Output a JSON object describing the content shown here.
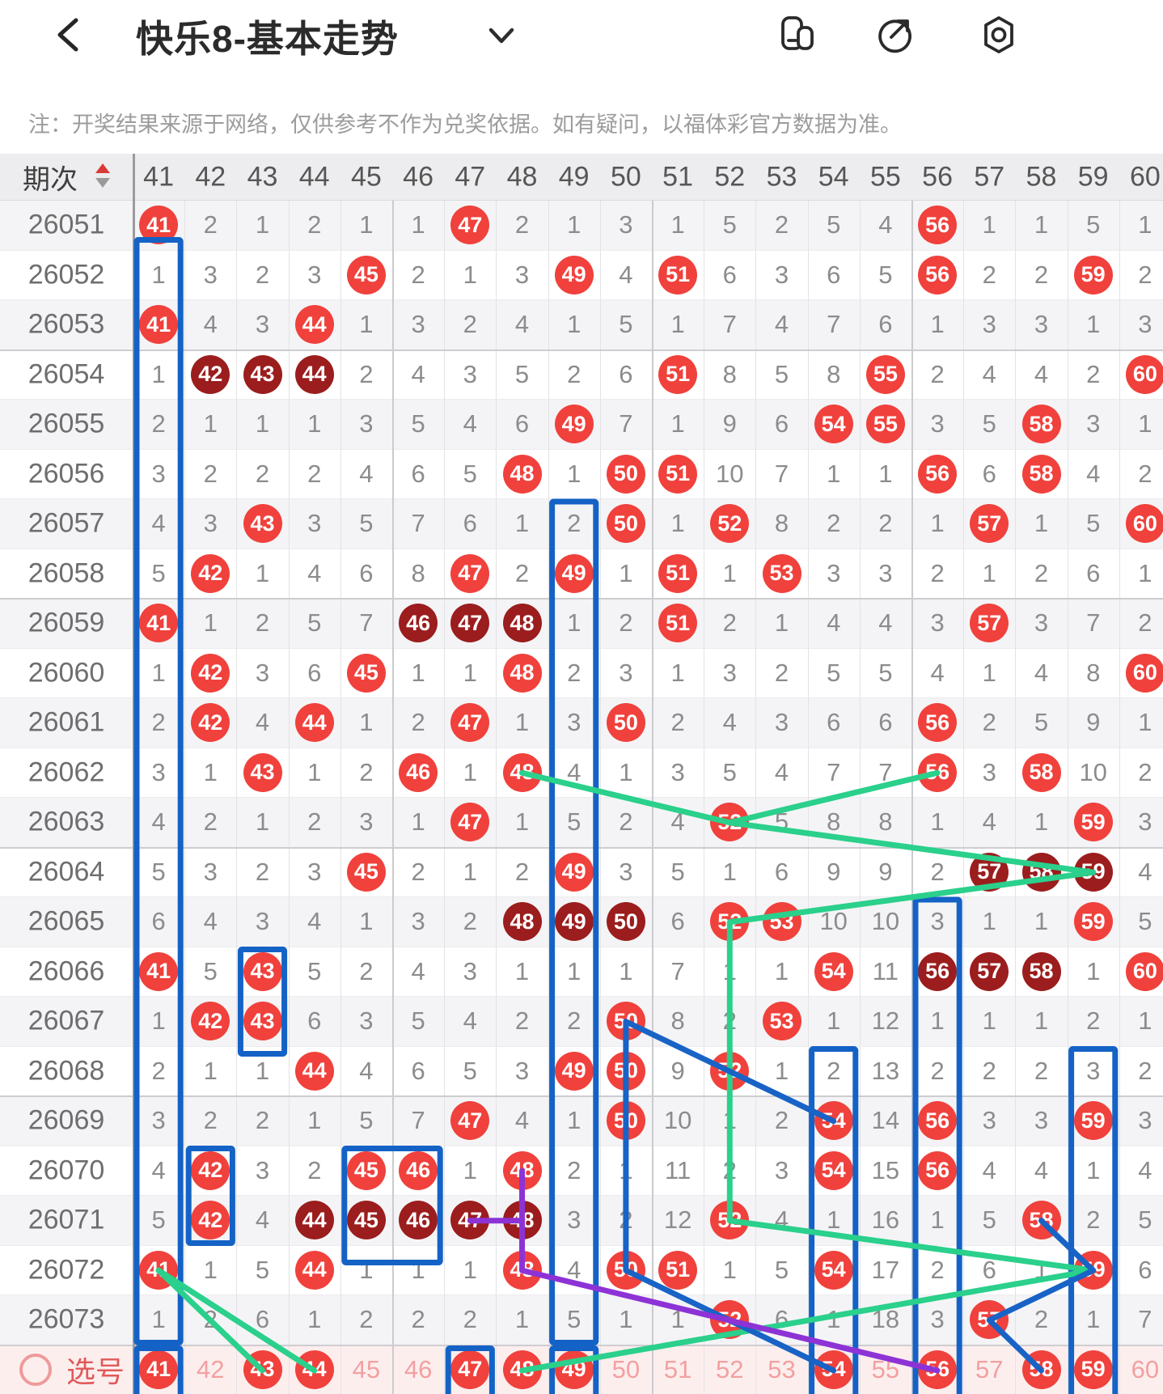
{
  "header": {
    "title": "快乐8-基本走势",
    "icons": [
      "back-icon",
      "chevron-down-icon",
      "multi-window-icon",
      "share-icon",
      "hexagon-dot-icon"
    ]
  },
  "note": "注：开奖结果来源于网络，仅供参考不作为兑奖依据。如有疑问，以福体彩官方数据为准。",
  "table": {
    "period_label": "期次",
    "columns": [
      "41",
      "42",
      "43",
      "44",
      "45",
      "46",
      "47",
      "48",
      "49",
      "50",
      "51",
      "52",
      "53",
      "54",
      "55",
      "56",
      "57",
      "58",
      "59",
      "60"
    ],
    "legend": {
      "B": "drawn-ball",
      "D": "repeat-drawn-ball",
      "plain": "miss-count"
    },
    "rows": [
      {
        "period": "26051",
        "cells": [
          "B41",
          "2",
          "1",
          "2",
          "1",
          "1",
          "B47",
          "2",
          "1",
          "3",
          "1",
          "5",
          "2",
          "5",
          "4",
          "B56",
          "1",
          "1",
          "5",
          "1"
        ]
      },
      {
        "period": "26052",
        "cells": [
          "1",
          "3",
          "2",
          "3",
          "B45",
          "2",
          "1",
          "3",
          "B49",
          "4",
          "B51",
          "6",
          "3",
          "6",
          "5",
          "B56",
          "2",
          "2",
          "B59",
          "2"
        ]
      },
      {
        "period": "26053",
        "cells": [
          "B41",
          "4",
          "3",
          "B44",
          "1",
          "3",
          "2",
          "4",
          "1",
          "5",
          "1",
          "7",
          "4",
          "7",
          "6",
          "1",
          "3",
          "3",
          "1",
          "3"
        ]
      },
      {
        "period": "26054",
        "cells": [
          "1",
          "D42",
          "D43",
          "D44",
          "2",
          "4",
          "3",
          "5",
          "2",
          "6",
          "B51",
          "8",
          "5",
          "8",
          "B55",
          "2",
          "4",
          "4",
          "2",
          "B60"
        ]
      },
      {
        "period": "26055",
        "cells": [
          "2",
          "1",
          "1",
          "1",
          "3",
          "5",
          "4",
          "6",
          "B49",
          "7",
          "1",
          "9",
          "6",
          "B54",
          "B55",
          "3",
          "5",
          "B58",
          "3",
          "1"
        ]
      },
      {
        "period": "26056",
        "cells": [
          "3",
          "2",
          "2",
          "2",
          "4",
          "6",
          "5",
          "B48",
          "1",
          "B50",
          "B51",
          "10",
          "7",
          "1",
          "1",
          "B56",
          "6",
          "B58",
          "4",
          "2"
        ]
      },
      {
        "period": "26057",
        "cells": [
          "4",
          "3",
          "B43",
          "3",
          "5",
          "7",
          "6",
          "1",
          "2",
          "B50",
          "1",
          "B52",
          "8",
          "2",
          "2",
          "1",
          "B57",
          "1",
          "5",
          "B60"
        ]
      },
      {
        "period": "26058",
        "cells": [
          "5",
          "B42",
          "1",
          "4",
          "6",
          "8",
          "B47",
          "2",
          "B49",
          "1",
          "B51",
          "1",
          "B53",
          "3",
          "3",
          "2",
          "1",
          "2",
          "6",
          "1"
        ]
      },
      {
        "period": "26059",
        "cells": [
          "B41",
          "1",
          "2",
          "5",
          "7",
          "D46",
          "D47",
          "D48",
          "1",
          "2",
          "B51",
          "2",
          "1",
          "4",
          "4",
          "3",
          "B57",
          "3",
          "7",
          "2"
        ]
      },
      {
        "period": "26060",
        "cells": [
          "1",
          "B42",
          "3",
          "6",
          "B45",
          "1",
          "1",
          "B48",
          "2",
          "3",
          "1",
          "3",
          "2",
          "5",
          "5",
          "4",
          "1",
          "4",
          "8",
          "B60"
        ]
      },
      {
        "period": "26061",
        "cells": [
          "2",
          "B42",
          "4",
          "B44",
          "1",
          "2",
          "B47",
          "1",
          "3",
          "B50",
          "2",
          "4",
          "3",
          "6",
          "6",
          "B56",
          "2",
          "5",
          "9",
          "1"
        ]
      },
      {
        "period": "26062",
        "cells": [
          "3",
          "1",
          "B43",
          "1",
          "2",
          "B46",
          "1",
          "B48",
          "4",
          "1",
          "3",
          "5",
          "4",
          "7",
          "7",
          "B56",
          "3",
          "B58",
          "10",
          "2"
        ]
      },
      {
        "period": "26063",
        "cells": [
          "4",
          "2",
          "1",
          "2",
          "3",
          "1",
          "B47",
          "1",
          "5",
          "2",
          "4",
          "B52",
          "5",
          "8",
          "8",
          "1",
          "4",
          "1",
          "B59",
          "3"
        ]
      },
      {
        "period": "26064",
        "cells": [
          "5",
          "3",
          "2",
          "3",
          "B45",
          "2",
          "1",
          "2",
          "B49",
          "3",
          "5",
          "1",
          "6",
          "9",
          "9",
          "2",
          "D57",
          "D58",
          "D59",
          "4"
        ]
      },
      {
        "period": "26065",
        "cells": [
          "6",
          "4",
          "3",
          "4",
          "1",
          "3",
          "2",
          "D48",
          "D49",
          "D50",
          "6",
          "B52",
          "B53",
          "10",
          "10",
          "3",
          "1",
          "1",
          "B59",
          "5"
        ]
      },
      {
        "period": "26066",
        "cells": [
          "B41",
          "5",
          "B43",
          "5",
          "2",
          "4",
          "3",
          "1",
          "1",
          "1",
          "7",
          "1",
          "1",
          "B54",
          "11",
          "D56",
          "D57",
          "D58",
          "1",
          "B60"
        ]
      },
      {
        "period": "26067",
        "cells": [
          "1",
          "B42",
          "B43",
          "6",
          "3",
          "5",
          "4",
          "2",
          "2",
          "B50",
          "8",
          "2",
          "B53",
          "1",
          "12",
          "1",
          "1",
          "1",
          "2",
          "1"
        ]
      },
      {
        "period": "26068",
        "cells": [
          "2",
          "1",
          "1",
          "B44",
          "4",
          "6",
          "5",
          "3",
          "B49",
          "B50",
          "9",
          "B52",
          "1",
          "2",
          "13",
          "2",
          "2",
          "2",
          "3",
          "2"
        ]
      },
      {
        "period": "26069",
        "cells": [
          "3",
          "2",
          "2",
          "1",
          "5",
          "7",
          "B47",
          "4",
          "1",
          "B50",
          "10",
          "1",
          "2",
          "B54",
          "14",
          "B56",
          "3",
          "3",
          "B59",
          "3"
        ]
      },
      {
        "period": "26070",
        "cells": [
          "4",
          "B42",
          "3",
          "2",
          "B45",
          "B46",
          "1",
          "B48",
          "2",
          "1",
          "11",
          "2",
          "3",
          "B54",
          "15",
          "B56",
          "4",
          "4",
          "1",
          "4"
        ]
      },
      {
        "period": "26071",
        "cells": [
          "5",
          "B42",
          "4",
          "D44",
          "D45",
          "D46",
          "D47",
          "D48",
          "3",
          "2",
          "12",
          "B52",
          "4",
          "1",
          "16",
          "1",
          "5",
          "B58",
          "2",
          "5"
        ]
      },
      {
        "period": "26072",
        "cells": [
          "B41",
          "1",
          "5",
          "B44",
          "1",
          "1",
          "1",
          "B48",
          "4",
          "B50",
          "B51",
          "1",
          "5",
          "B54",
          "17",
          "2",
          "6",
          "1",
          "B59",
          "6"
        ]
      },
      {
        "period": "26073",
        "cells": [
          "1",
          "2",
          "6",
          "1",
          "2",
          "2",
          "2",
          "1",
          "5",
          "1",
          "1",
          "B52",
          "6",
          "1",
          "18",
          "3",
          "B57",
          "2",
          "1",
          "7"
        ]
      }
    ],
    "selection_row": {
      "label": "选号",
      "cells": [
        "B41",
        "42",
        "B43",
        "B44",
        "45",
        "46",
        "B47",
        "B48",
        "B49",
        "50",
        "51",
        "52",
        "53",
        "B54",
        "55",
        "B56",
        "57",
        "B58",
        "B59",
        "60"
      ]
    }
  },
  "overlays": {
    "boxes": [
      {
        "c1": 41,
        "c2": 41,
        "r1": "26052",
        "r2": "26073",
        "dy1": -16
      },
      {
        "c1": 49,
        "c2": 49,
        "r1": "26057",
        "r2": "26073"
      },
      {
        "c1": 43,
        "c2": 43,
        "r1": "26066",
        "r2": "26067",
        "dy2": 12
      },
      {
        "c1": 42,
        "c2": 42,
        "r1": "26070",
        "r2": "26071"
      },
      {
        "c1": 45,
        "c2": 46,
        "r1": "26070",
        "r2": "26071",
        "dy2": 24
      },
      {
        "c1": 54,
        "c2": 54,
        "r1": "26068",
        "r2": "bottom"
      },
      {
        "c1": 56,
        "c2": 56,
        "r1": "26065",
        "r2": "bottom"
      },
      {
        "c1": 59,
        "c2": 59,
        "r1": "26068",
        "r2": "bottom"
      },
      {
        "c1": 41,
        "c2": 41,
        "r1": "sel",
        "r2": "bottom"
      },
      {
        "c1": 47,
        "c2": 47,
        "r1": "sel",
        "r2": "bottom"
      },
      {
        "c1": 49,
        "c2": 49,
        "r1": "sel",
        "r2": "bottom"
      }
    ],
    "lines": [
      {
        "color": "#2ad08b",
        "pts": [
          [
            48,
            "26062"
          ],
          [
            52,
            "26063"
          ],
          [
            56,
            "26062"
          ]
        ]
      },
      {
        "color": "#2ad08b",
        "pts": [
          [
            52,
            "26063"
          ],
          [
            59,
            "26064"
          ],
          [
            52,
            "26065"
          ],
          [
            52,
            "26071"
          ],
          [
            59,
            "26072"
          ],
          [
            48,
            "sel"
          ]
        ]
      },
      {
        "color": "#2ad08b",
        "pts": [
          [
            41,
            "26072"
          ],
          [
            43,
            "sel"
          ]
        ]
      },
      {
        "color": "#2ad08b",
        "pts": [
          [
            41,
            "26072"
          ],
          [
            44,
            "sel"
          ]
        ]
      },
      {
        "color": "#1863c5",
        "pts": [
          [
            50,
            "26067"
          ],
          [
            54,
            "26069"
          ]
        ]
      },
      {
        "color": "#1863c5",
        "pts": [
          [
            50,
            "26067"
          ],
          [
            50,
            "26072"
          ],
          [
            54,
            "sel"
          ]
        ]
      },
      {
        "color": "#1863c5",
        "pts": [
          [
            58,
            "26071"
          ],
          [
            59,
            "26072"
          ],
          [
            57,
            "26073"
          ],
          [
            58,
            "sel"
          ]
        ]
      },
      {
        "color": "#8d33d6",
        "pts": [
          [
            47,
            "26071"
          ],
          [
            48,
            "26071"
          ]
        ]
      },
      {
        "color": "#8d33d6",
        "pts": [
          [
            48,
            "26070"
          ],
          [
            48,
            "26072"
          ],
          [
            56,
            "sel"
          ]
        ]
      }
    ]
  },
  "colors": {
    "ball_red": "#f0413c",
    "ball_dark_red": "#9b1d1d",
    "box_blue": "#1462c6",
    "line_green": "#2ad08b",
    "line_blue": "#1863c5",
    "line_purple": "#8d33d6",
    "selection_pink": "#f2a0a0",
    "selection_bg": "#fdeeee"
  }
}
